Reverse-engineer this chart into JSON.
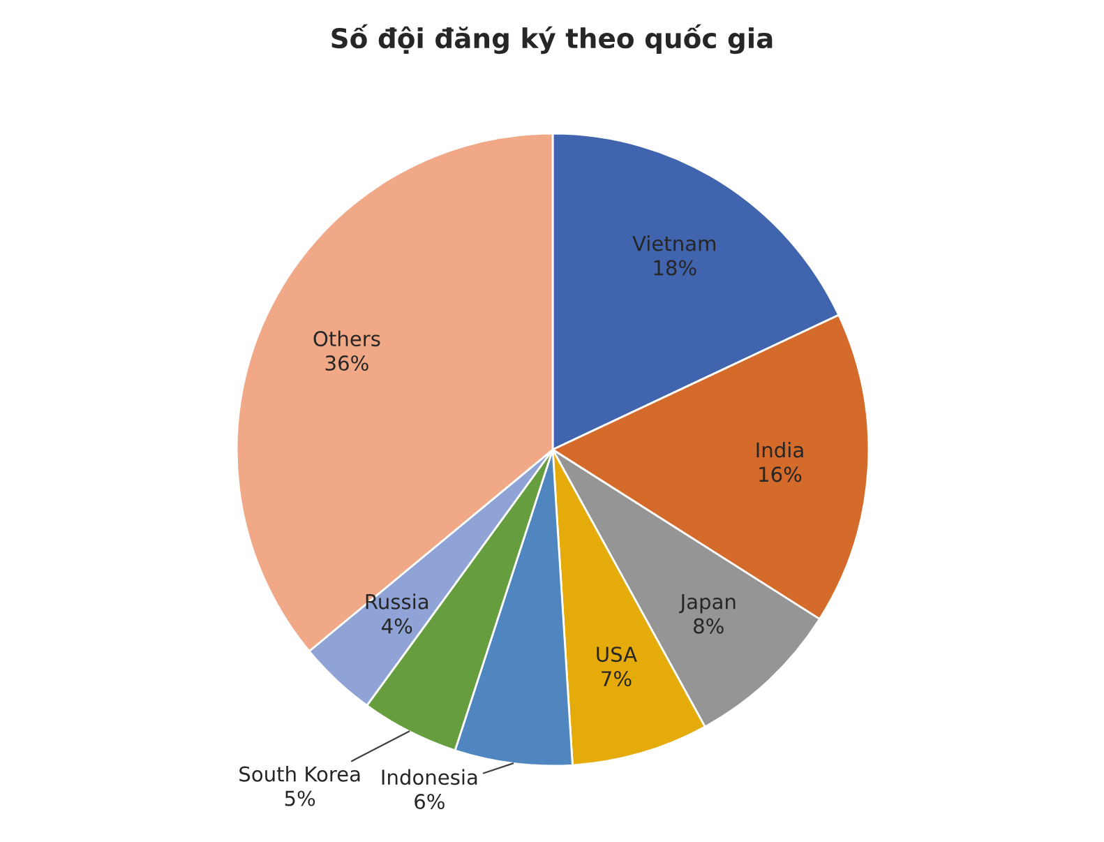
{
  "chart_data": {
    "type": "pie",
    "title": "Số đội đăng ký theo quốc gia",
    "categories": [
      "Vietnam",
      "India",
      "Japan",
      "USA",
      "Indonesia",
      "South Korea",
      "Russia",
      "Others"
    ],
    "values": [
      18,
      16,
      8,
      7,
      6,
      5,
      4,
      36
    ],
    "value_labels": [
      "18%",
      "16%",
      "8%",
      "7%",
      "6%",
      "5%",
      "4%",
      "36%"
    ],
    "colors": [
      "#4064ae",
      "#d46b2a",
      "#959595",
      "#e5ab0a",
      "#4f86c0",
      "#669e3f",
      "#90a3d6",
      "#f0a887"
    ]
  }
}
